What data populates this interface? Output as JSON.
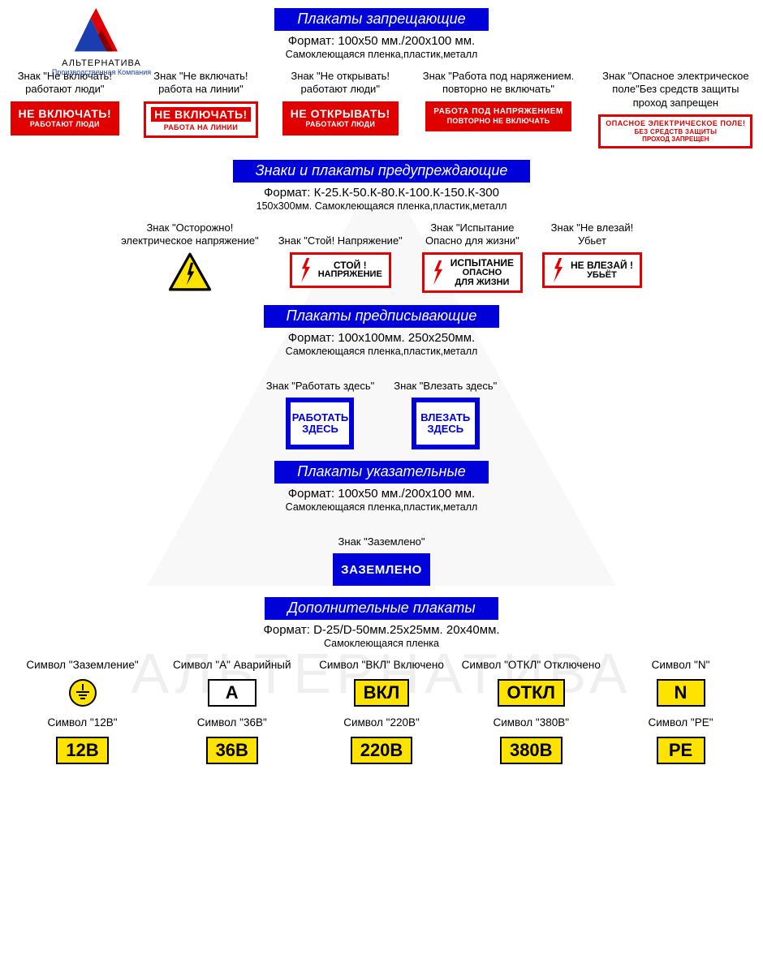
{
  "colors": {
    "title_bg": "#0000d8",
    "red": "#e00000",
    "yellow": "#ffe300",
    "blue": "#0000d8",
    "black": "#000000",
    "white": "#ffffff"
  },
  "logo": {
    "name": "АЛЬТЕРНАТИВА",
    "sub": "Производственная Компания",
    "accent1": "#e00000",
    "accent2": "#1a3db0"
  },
  "watermark_text": "АЛЬТЕРНАТИВА",
  "sections": [
    {
      "title": "Плакаты запрещающие",
      "format": "Формат: 100х50 мм./200х100 мм.",
      "materials": "Самоклеющаяся пленка,пластик,металл",
      "items": [
        {
          "label": "Знак \"Не включать!\nработают люди\"",
          "sign": {
            "type": "red",
            "l1": "НЕ ВКЛЮЧАТЬ!",
            "l2": "РАБОТАЮТ ЛЮДИ"
          }
        },
        {
          "label": "Знак \"Не включать!\nработа на линии\"",
          "sign": {
            "type": "red_inv",
            "l1": "НЕ ВКЛЮЧАТЬ!",
            "l2": "РАБОТА НА ЛИНИИ"
          }
        },
        {
          "label": "Знак \"Не открывать!\nработают люди\"",
          "sign": {
            "type": "red",
            "l1": "НЕ ОТКРЫВАТЬ!",
            "l2": "РАБОТАЮТ ЛЮДИ"
          }
        },
        {
          "label": "Знак \"Работа под наряжением.\nповторно не включать\"",
          "sign": {
            "type": "red",
            "l1": "РАБОТА ПОД НАПРЯЖЕНИЕМ",
            "l2": "ПОВТОРНО НЕ ВКЛЮЧАТЬ",
            "small": true
          }
        },
        {
          "label": "Знак \"Опасное электрическое\nполе\"Без средств защиты\nпроход запрещен",
          "sign": {
            "type": "red_onwhite",
            "l1": "ОПАСНОЕ ЭЛЕКТРИЧЕСКОЕ ПОЛЕ!",
            "l2": "БЕЗ СРЕДСТВ ЗАЩИТЫ",
            "l3": "ПРОХОД ЗАПРЕЩЕН"
          }
        }
      ]
    },
    {
      "title": "Знаки и плакаты предупреждающие",
      "format": "Формат: К-25.К-50.К-80.К-100.К-150.К-300",
      "materials": "150х300мм. Самоклеющаяся пленка,пластик,металл",
      "items": [
        {
          "label": "Знак \"Осторожно!\nэлектрическое напряжение\"",
          "sign": {
            "type": "triangle"
          }
        },
        {
          "label": "Знак \"Стой! Напряжение\"",
          "sign": {
            "type": "warn",
            "l1": "СТОЙ !",
            "l2": "НАПРЯЖЕНИЕ"
          }
        },
        {
          "label": "Знак \"Испытание\nОпасно для жизни\"",
          "sign": {
            "type": "warn",
            "l1": "ИСПЫТАНИЕ",
            "l2": "ОПАСНО",
            "l3": "ДЛЯ ЖИЗНИ"
          }
        },
        {
          "label": "Знак \"Не влезай!\nУбьет",
          "sign": {
            "type": "warn",
            "l1": "НЕ ВЛЕЗАЙ !",
            "l2": "УБЬЁТ"
          }
        }
      ]
    },
    {
      "title": "Плакаты предписывающие",
      "format": "Формат: 100х100мм. 250х250мм.",
      "materials": "Самоклеющаяся пленка,пластик,металл",
      "items": [
        {
          "label": "Знак \"Работать здесь\"",
          "sign": {
            "type": "blue_sq",
            "l1": "РАБОТАТЬ",
            "l2": "ЗДЕСЬ"
          }
        },
        {
          "label": "Знак \"Влезать здесь\"",
          "sign": {
            "type": "blue_sq",
            "l1": "ВЛЕЗАТЬ",
            "l2": "ЗДЕСЬ"
          }
        }
      ]
    },
    {
      "title": "Плакаты указательные",
      "format": "Формат: 100х50 мм./200х100 мм.",
      "materials": "Самоклеющаяся пленка,пластик,металл",
      "items": [
        {
          "label": "Знак \"Заземлено\"",
          "sign": {
            "type": "blue_fill",
            "l1": "ЗАЗЕМЛЕНО"
          }
        }
      ]
    },
    {
      "title": "Дополнительные плакаты",
      "format": "Формат: D-25/D-50мм.25х25мм. 20х40мм.",
      "materials": "Самоклеющаяся пленка",
      "rows": [
        [
          {
            "label": "Символ \"Заземление\"",
            "sign": {
              "type": "ground_circle"
            }
          },
          {
            "label": "Символ \"А\" Аварийный",
            "sign": {
              "type": "ybox",
              "text": "А",
              "bg": "#ffffff"
            }
          },
          {
            "label": "Символ \"ВКЛ\" Включено",
            "sign": {
              "type": "ybox",
              "text": "ВКЛ"
            }
          },
          {
            "label": "Символ \"ОТКЛ\" Отключено",
            "sign": {
              "type": "ybox",
              "text": "ОТКЛ"
            }
          },
          {
            "label": "Символ \"N\"",
            "sign": {
              "type": "ybox",
              "text": "N"
            }
          }
        ],
        [
          {
            "label": "Символ \"12В\"",
            "sign": {
              "type": "ybox",
              "text": "12В"
            }
          },
          {
            "label": "Символ \"36В\"",
            "sign": {
              "type": "ybox",
              "text": "36В"
            }
          },
          {
            "label": "Символ \"220В\"",
            "sign": {
              "type": "ybox",
              "text": "220В"
            }
          },
          {
            "label": "Символ \"380В\"",
            "sign": {
              "type": "ybox",
              "text": "380В"
            }
          },
          {
            "label": "Символ \"PE\"",
            "sign": {
              "type": "ybox",
              "text": "PE"
            }
          }
        ]
      ]
    }
  ]
}
